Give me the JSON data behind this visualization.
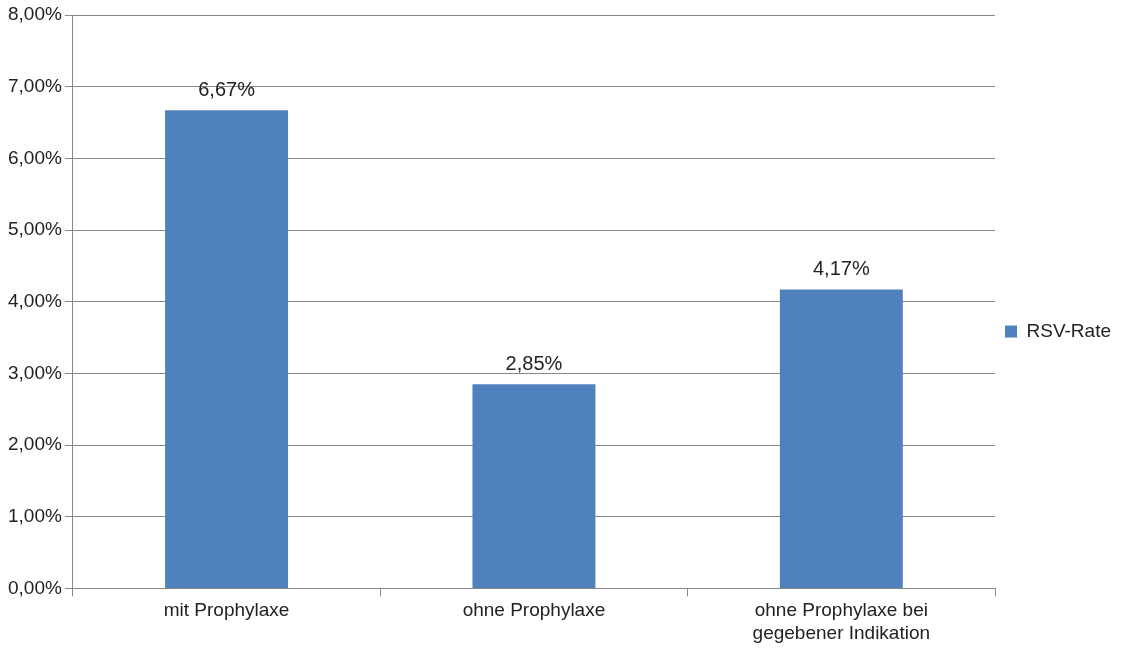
{
  "chart_data": {
    "type": "bar",
    "categories": [
      "mit Prophylaxe",
      "ohne Prophylaxe",
      "ohne Prophylaxe bei gegebener Indikation"
    ],
    "series": [
      {
        "name": "RSV-Rate",
        "color": "#4f81bd",
        "values": [
          6.67,
          2.85,
          4.17
        ],
        "value_labels": [
          "6,67%",
          "2,85%",
          "4,17%"
        ]
      }
    ],
    "ylim": [
      0,
      8
    ],
    "yticks": [
      {
        "value": 0,
        "label": "0,00%"
      },
      {
        "value": 1,
        "label": "1,00%"
      },
      {
        "value": 2,
        "label": "2,00%"
      },
      {
        "value": 3,
        "label": "3,00%"
      },
      {
        "value": 4,
        "label": "4,00%"
      },
      {
        "value": 5,
        "label": "5,00%"
      },
      {
        "value": 6,
        "label": "6,00%"
      },
      {
        "value": 7,
        "label": "7,00%"
      },
      {
        "value": 8,
        "label": "8,00%"
      }
    ],
    "grid": "y",
    "legend": "right"
  }
}
